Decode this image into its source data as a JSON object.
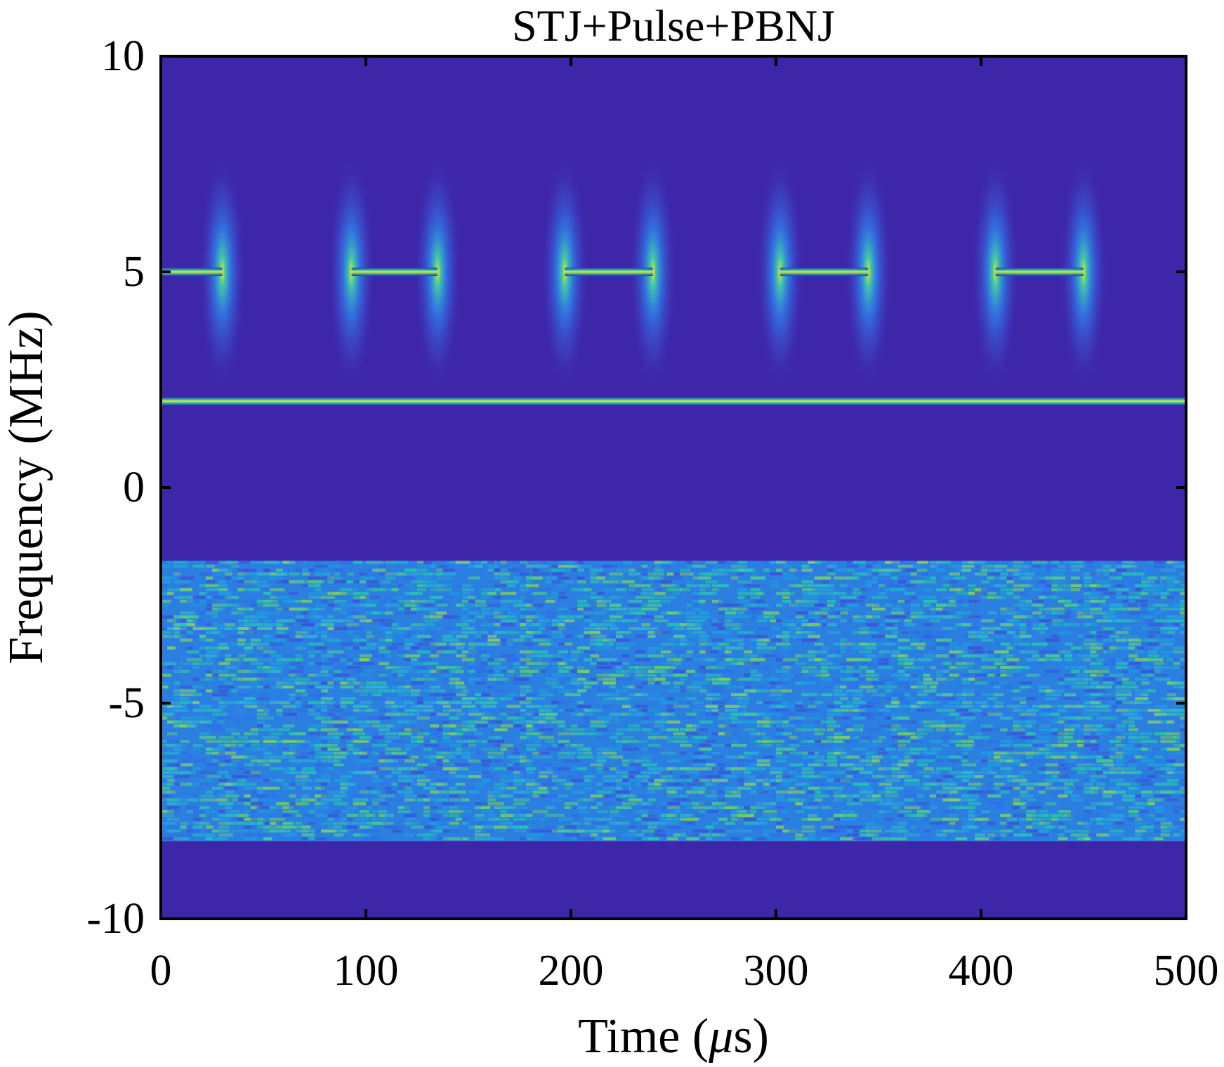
{
  "chart_data": {
    "type": "heatmap",
    "title": "STJ+Pulse+PBNJ",
    "xlabel_prefix": "Time  (",
    "xlabel_unit_symbol": "μ",
    "xlabel_suffix": "s)",
    "ylabel": "Frequency (MHz)",
    "xlim": [
      0,
      500
    ],
    "ylim": [
      -10,
      10
    ],
    "xticks": [
      {
        "value": 0,
        "label": "0"
      },
      {
        "value": 100,
        "label": "100"
      },
      {
        "value": 200,
        "label": "200"
      },
      {
        "value": 300,
        "label": "300"
      },
      {
        "value": 400,
        "label": "400"
      },
      {
        "value": 500,
        "label": "500"
      }
    ],
    "yticks": [
      {
        "value": 10,
        "label": "10"
      },
      {
        "value": 5,
        "label": "5"
      },
      {
        "value": 0,
        "label": "0"
      },
      {
        "value": -5,
        "label": "-5"
      },
      {
        "value": -10,
        "label": "-10"
      }
    ],
    "colormap": "parula",
    "colors": {
      "background": "#3e26a8",
      "signal_peak": "#f9e21d",
      "halo_inner": "#2d8cf0",
      "noise_base": "#2a7fe0",
      "noise_light": "#27c2b0"
    },
    "components": {
      "single_tone_jamming": {
        "frequency_mhz": 2.0,
        "t_start": 0,
        "t_end": 500
      },
      "pulse_jamming": {
        "frequency_mhz": 5.0,
        "halo_extent_mhz": [
          2.2,
          7.8
        ],
        "segments": [
          {
            "t_start": 0,
            "t_end": 30
          },
          {
            "t_start": 93,
            "t_end": 135
          },
          {
            "t_start": 197,
            "t_end": 240
          },
          {
            "t_start": 302,
            "t_end": 345
          },
          {
            "t_start": 407,
            "t_end": 450
          }
        ],
        "edge_spikes_us": [
          30,
          93,
          135,
          197,
          240,
          302,
          345,
          407,
          450
        ]
      },
      "partial_band_noise_jamming": {
        "f_low_mhz": -8.2,
        "f_high_mhz": -1.7,
        "t_start": 0,
        "t_end": 500
      }
    }
  }
}
